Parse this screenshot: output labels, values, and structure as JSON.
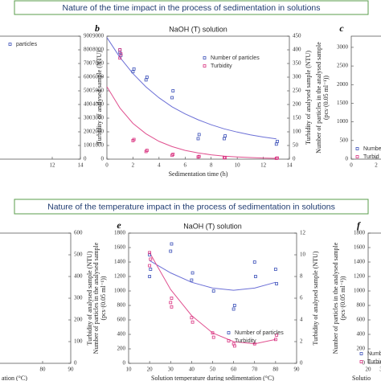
{
  "headers": [
    "Nature of the time impact in the process of sedimentation in solutions",
    "Nature of the temperature impact in the process of sedimentation in solutions"
  ],
  "chart_data": [
    {
      "type": "scatter",
      "y2label": "Turbidity of analysed sample (NTU)",
      "xlim": [
        0,
        14
      ],
      "xticks": [
        12,
        14
      ],
      "y2lim": [
        0,
        900
      ],
      "y2ticks": [
        0,
        100,
        200,
        300,
        400,
        500,
        600,
        700,
        800,
        900
      ],
      "legend": [
        {
          "label": "particles",
          "color": "#3a4fb8"
        }
      ],
      "series": [],
      "fits": []
    },
    {
      "type": "scatter",
      "label": "b",
      "title": "NaOH (T) solution",
      "xlabel": "Sedimentation time (h)",
      "y2label": "Turbidity of analysed sample (NTU)",
      "xlim": [
        0,
        14
      ],
      "xticks": [
        0,
        2,
        4,
        6,
        8,
        10,
        12,
        14
      ],
      "ylim": [
        0,
        9000
      ],
      "yticks": [
        0,
        1000,
        2000,
        3000,
        4000,
        5000,
        6000,
        7000,
        8000,
        9000
      ],
      "y2lim": [
        0,
        450
      ],
      "y2ticks": [
        0,
        50,
        100,
        150,
        200,
        250,
        300,
        350,
        400,
        450
      ],
      "series": [
        {
          "name": "Number of particles",
          "color": "#3a4fb8",
          "x": [
            1,
            1,
            1,
            2,
            2,
            3,
            3,
            5,
            5,
            7,
            7,
            9,
            9,
            13,
            13
          ],
          "values": [
            7800,
            7600,
            8000,
            6600,
            6400,
            6000,
            5800,
            5000,
            4500,
            1800,
            1500,
            1700,
            1500,
            1300,
            1100
          ]
        },
        {
          "name": "Turbidity",
          "color": "#d9307f",
          "axis": "y2",
          "x": [
            1,
            1,
            1,
            2,
            2,
            3,
            3,
            5,
            5,
            7,
            7,
            9,
            9,
            13,
            13
          ],
          "values": [
            400,
            385,
            370,
            72,
            68,
            32,
            28,
            18,
            14,
            10,
            8,
            6,
            5,
            4,
            3
          ]
        }
      ],
      "fits": [
        {
          "color": "#6b6fd6",
          "x": [
            0,
            1,
            2,
            3,
            4,
            5,
            6,
            7,
            8,
            9,
            10,
            11,
            12,
            13
          ],
          "values": [
            8900,
            7450,
            6260,
            5290,
            4490,
            3830,
            3310,
            2880,
            2520,
            2220,
            1980,
            1780,
            1620,
            1490
          ]
        },
        {
          "color": "#e0508f",
          "axis": "y2",
          "x": [
            0,
            1,
            2,
            3,
            4,
            5,
            6,
            7,
            8,
            9,
            10,
            11,
            12,
            13
          ],
          "values": [
            265,
            187,
            131,
            93,
            65,
            46,
            32,
            23,
            16,
            11,
            8,
            6,
            4,
            3
          ]
        }
      ]
    },
    {
      "type": "scatter",
      "label": "c",
      "ylabel": [
        "Number of particles in the analysed sample",
        "(pcs·(0.05 ml⁻¹))"
      ],
      "xlim": [
        0,
        14
      ],
      "xticks": [
        0,
        2
      ],
      "ylim": [
        0,
        3300
      ],
      "yticks": [
        0,
        500,
        1000,
        1500,
        2000,
        2500,
        3000
      ],
      "legend": [
        {
          "label": "Numbe",
          "color": "#3a4fb8"
        },
        {
          "label": "Turbid",
          "color": "#d9307f"
        }
      ],
      "series": [],
      "fits": []
    },
    {
      "type": "scatter",
      "xlabel": "ation (°C)",
      "y2label": "Turbidity of analysed sample (NTU)",
      "xlim": [
        10,
        90
      ],
      "xticks": [
        80,
        90
      ],
      "y2lim": [
        0,
        600
      ],
      "y2ticks": [
        0,
        100,
        200,
        300,
        400,
        500,
        600
      ],
      "series": [],
      "fits": []
    },
    {
      "type": "scatter",
      "label": "e",
      "title": "NaOH (T) solution",
      "xlabel": "Solution temperature during sedimentation (°C)",
      "ylabel": [
        "Number of particles in the analysed sample",
        "(pcs·(0.05 ml⁻¹))"
      ],
      "y2label": "Turbidity of analysed sample (NTU)",
      "xlim": [
        10,
        90
      ],
      "xticks": [
        10,
        20,
        30,
        40,
        50,
        60,
        70,
        80,
        90
      ],
      "ylim": [
        0,
        1800
      ],
      "yticks": [
        0,
        200,
        400,
        600,
        800,
        1000,
        1200,
        1400,
        1600,
        1800
      ],
      "y2lim": [
        0,
        12
      ],
      "y2ticks": [
        0,
        2,
        4,
        6,
        8,
        10,
        12
      ],
      "series": [
        {
          "name": "Number of particles",
          "color": "#3a4fb8",
          "x": [
            20,
            20,
            20,
            30,
            30,
            40,
            40,
            50,
            60,
            60,
            70,
            70,
            80,
            80
          ],
          "values": [
            1500,
            1300,
            1200,
            1650,
            1550,
            1250,
            1150,
            1000,
            750,
            800,
            1400,
            1200,
            1300,
            1100
          ]
        },
        {
          "name": "Turbidity",
          "color": "#d9307f",
          "axis": "y2",
          "x": [
            20,
            20,
            20,
            30,
            30,
            30,
            40,
            40,
            50,
            50,
            60,
            60,
            70,
            80,
            80
          ],
          "values": [
            10.2,
            9.6,
            9.0,
            6.0,
            5.6,
            5.2,
            4.2,
            3.8,
            2.8,
            2.4,
            1.8,
            1.6,
            1.8,
            2.6,
            2.2
          ]
        }
      ],
      "fits": [
        {
          "color": "#6b6fd6",
          "x": [
            20,
            30,
            40,
            50,
            60,
            70,
            80
          ],
          "values": [
            1420,
            1250,
            1120,
            1040,
            1010,
            1040,
            1120
          ]
        },
        {
          "color": "#e0508f",
          "axis": "y2",
          "x": [
            20,
            30,
            40,
            50,
            60,
            70,
            80
          ],
          "values": [
            10.2,
            6.8,
            4.4,
            2.8,
            2.0,
            1.8,
            2.2
          ]
        }
      ]
    },
    {
      "type": "scatter",
      "label": "f",
      "xlabel": "Solutio",
      "ylabel": [
        "Number of particles in the analysed sample",
        "(pcs·(0.05 ml⁻¹))"
      ],
      "xlim": [
        20,
        90
      ],
      "xticks": [
        20,
        {
          "value": 30,
          "label": "3"
        }
      ],
      "ylim": [
        0,
        1800
      ],
      "yticks": [
        0,
        200,
        400,
        600,
        800,
        1000,
        1200,
        1400,
        1600,
        1800
      ],
      "legend": [
        {
          "label": "Number",
          "color": "#3a4fb8"
        },
        {
          "label": "Turbid",
          "color": "#d9307f"
        }
      ],
      "series": [],
      "fits": []
    }
  ]
}
